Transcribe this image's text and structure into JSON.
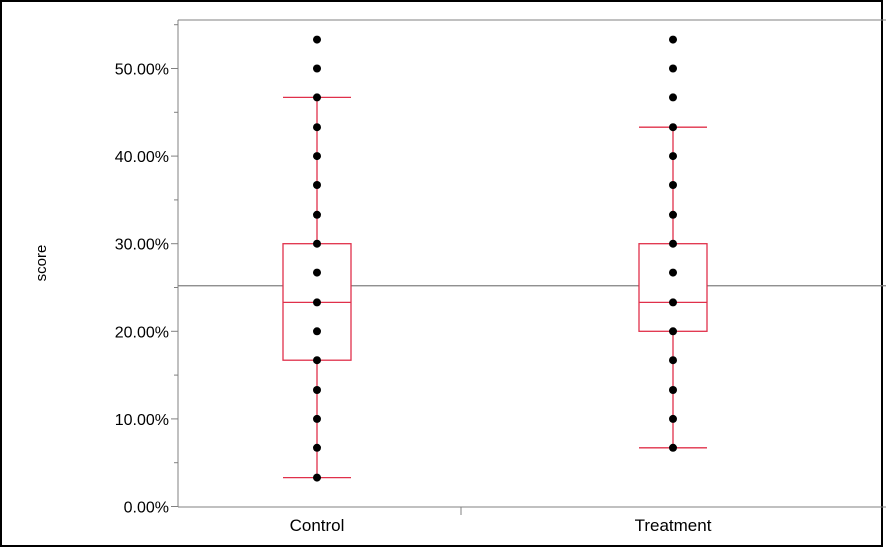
{
  "chart_data": {
    "type": "box",
    "xlabel": "",
    "ylabel": "score",
    "ylim": [
      0,
      0.55
    ],
    "yticks": [
      0,
      0.1,
      0.2,
      0.3,
      0.4,
      0.5
    ],
    "ytick_labels": [
      "0.00%",
      "10.00%",
      "20.00%",
      "30.00%",
      "40.00%",
      "50.00%"
    ],
    "categories": [
      "Control",
      "Treatment"
    ],
    "reference_line": 0.252,
    "groups": [
      {
        "category": "Control",
        "whisker_low": 0.033,
        "q1": 0.167,
        "median": 0.233,
        "q3": 0.3,
        "whisker_high": 0.467,
        "points": [
          0.033,
          0.067,
          0.1,
          0.133,
          0.167,
          0.2,
          0.233,
          0.267,
          0.3,
          0.333,
          0.367,
          0.4,
          0.433,
          0.467,
          0.5,
          0.533
        ]
      },
      {
        "category": "Treatment",
        "whisker_low": 0.067,
        "q1": 0.2,
        "median": 0.233,
        "q3": 0.3,
        "whisker_high": 0.433,
        "points": [
          0.067,
          0.1,
          0.133,
          0.167,
          0.2,
          0.233,
          0.267,
          0.3,
          0.333,
          0.367,
          0.4,
          0.433,
          0.467,
          0.5,
          0.533
        ]
      }
    ],
    "colors": {
      "box": "#e0304a",
      "points": "#000000",
      "reference": "#808080",
      "axis": "#808080"
    }
  }
}
